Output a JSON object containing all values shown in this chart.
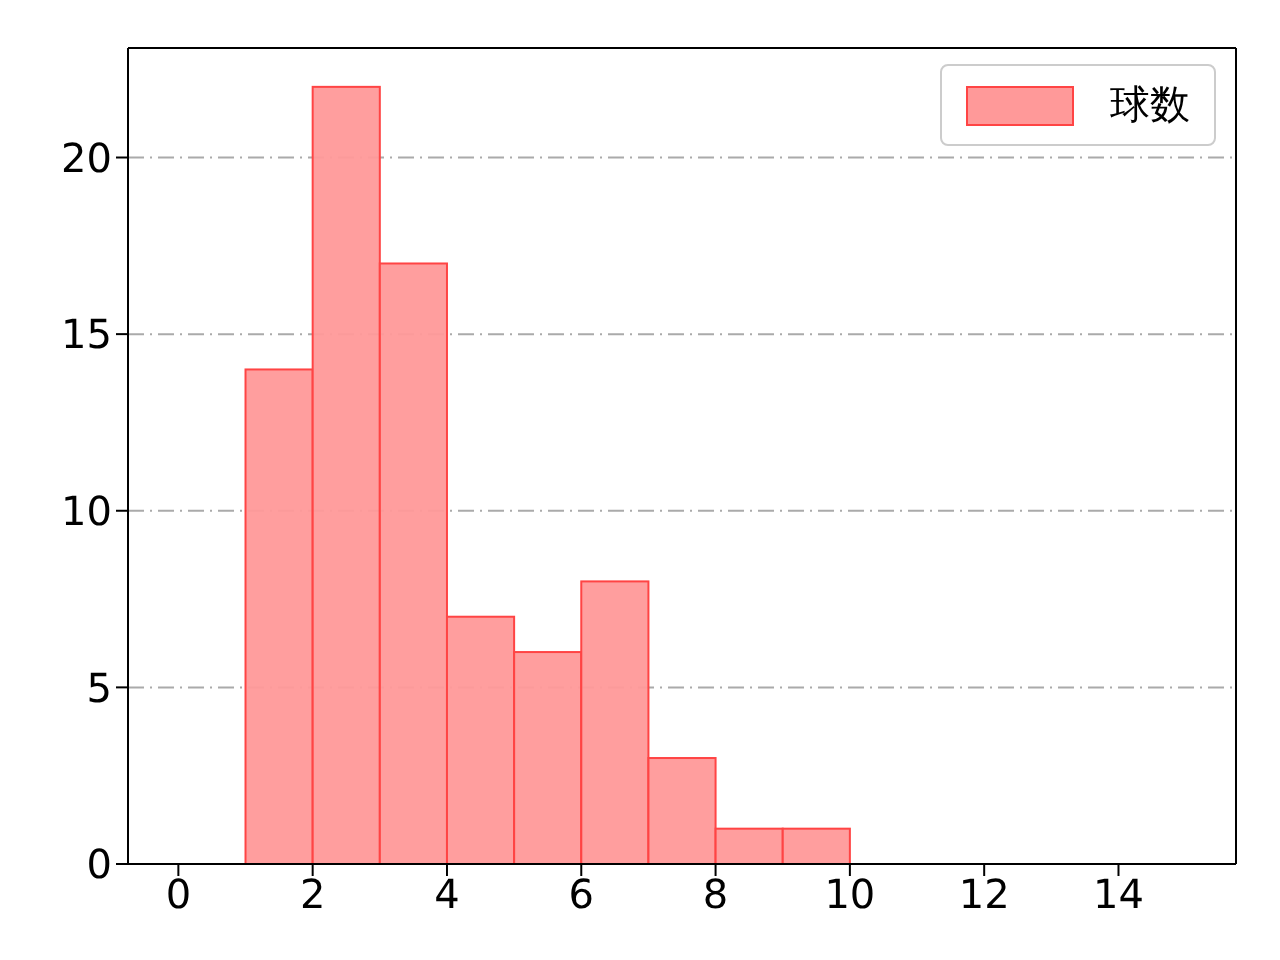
{
  "chart_data": {
    "type": "histogram",
    "bins": [
      1,
      2,
      3,
      4,
      5,
      6,
      7,
      8,
      9,
      10
    ],
    "series": [
      {
        "name": "球数",
        "color": "#ff9999",
        "values": [
          14,
          22,
          17,
          7,
          6,
          8,
          3,
          1,
          1
        ]
      }
    ],
    "xlim": [
      -0.75,
      15.75
    ],
    "xticks": [
      0,
      2,
      4,
      6,
      8,
      10,
      12,
      14
    ],
    "ylim": [
      0,
      23.1
    ],
    "yticks": [
      0,
      5,
      10,
      15,
      20
    ],
    "grid": "y",
    "legend": "top right"
  }
}
